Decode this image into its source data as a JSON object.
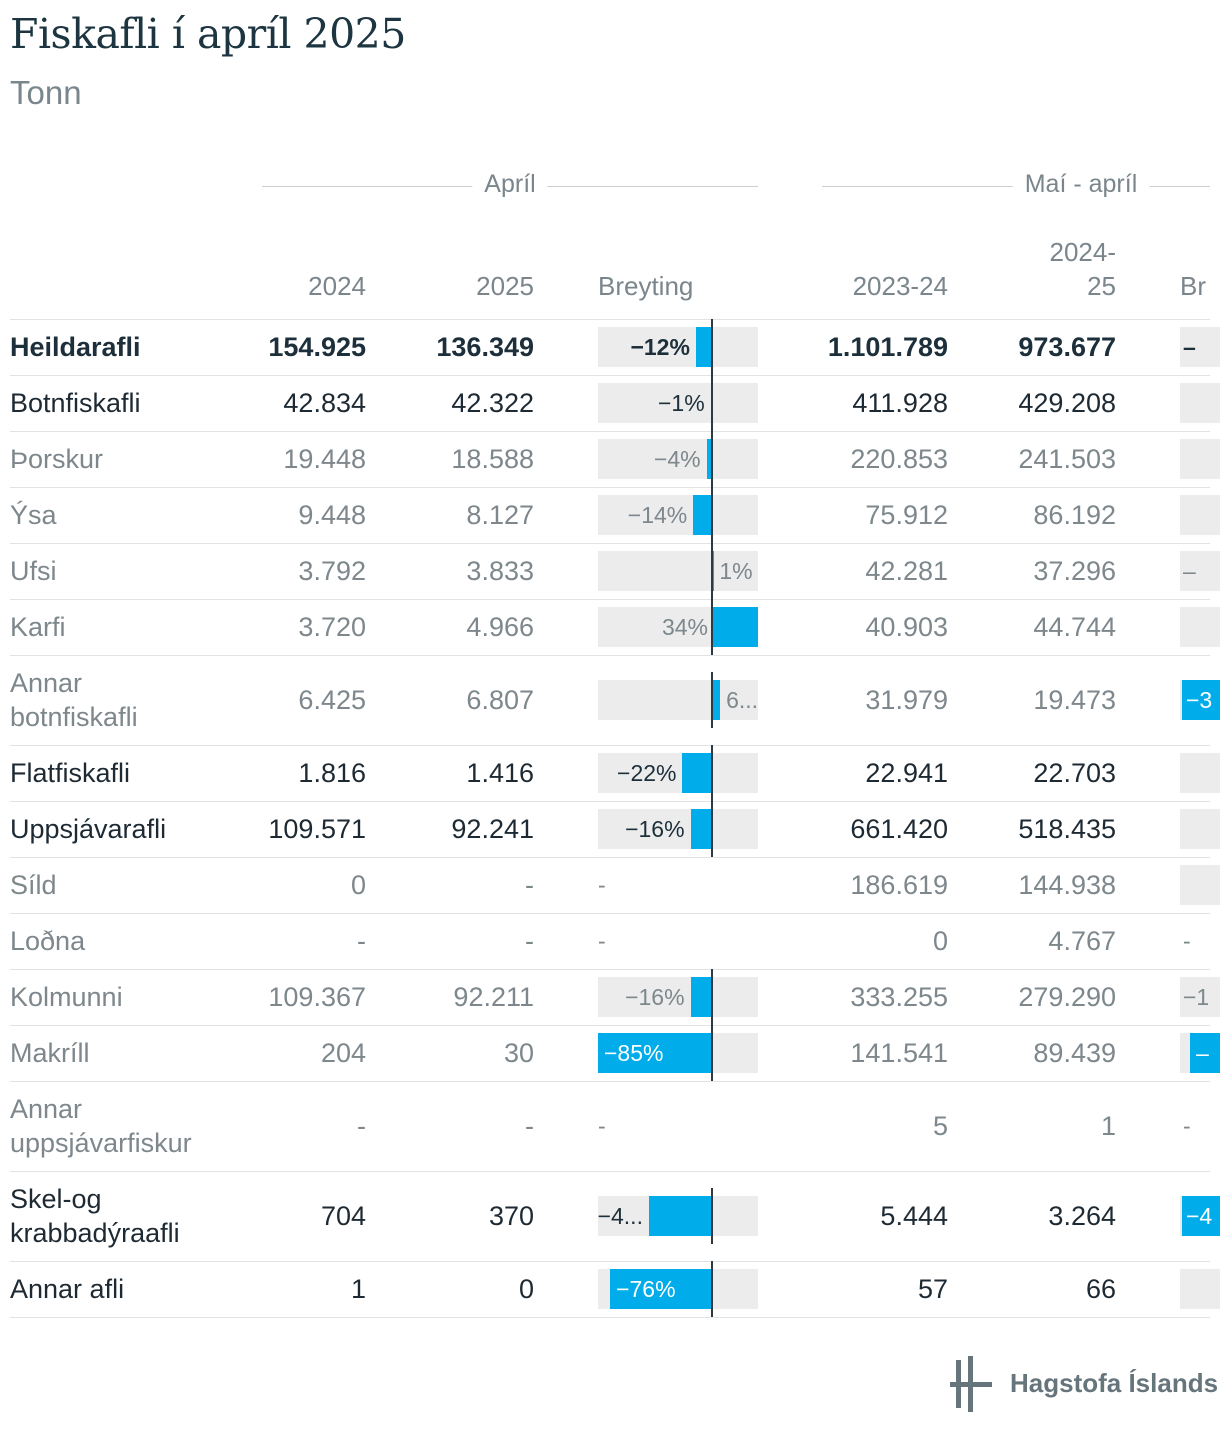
{
  "title": "Fiskafli í apríl 2025",
  "subtitle": "Tonn",
  "groups": {
    "april": "Apríl",
    "mai_april": "Maí - apríl"
  },
  "columns": {
    "y2024": "2024",
    "y2025": "2025",
    "breyting": "Breyting",
    "p2023_24": "2023-24",
    "p2024_25_a": "2024-",
    "p2024_25_b": "25",
    "breyting_cut": "Br"
  },
  "colors": {
    "bar": "#00acea",
    "bar_bg": "#ececec",
    "title": "#1c3540"
  },
  "chart_data": {
    "type": "table",
    "title": "Fiskafli í apríl 2025",
    "unit": "Tonn",
    "rows": [
      {
        "name": "Heildarafli",
        "style": "bold",
        "v2024": "154.925",
        "v2025": "136.349",
        "change": -12,
        "change_label": "−12%",
        "p2023_24": "1.101.789",
        "p2024_25": "973.677",
        "right_label": "–"
      },
      {
        "name": "Botnfiskafli",
        "style": "strong",
        "v2024": "42.834",
        "v2025": "42.322",
        "change": -1,
        "change_label": "−1%",
        "p2023_24": "411.928",
        "p2024_25": "429.208"
      },
      {
        "name": "Þorskur",
        "style": "muted",
        "v2024": "19.448",
        "v2025": "18.588",
        "change": -4,
        "change_label": "−4%",
        "p2023_24": "220.853",
        "p2024_25": "241.503"
      },
      {
        "name": "Ýsa",
        "style": "muted",
        "v2024": "9.448",
        "v2025": "8.127",
        "change": -14,
        "change_label": "−14%",
        "p2023_24": "75.912",
        "p2024_25": "86.192"
      },
      {
        "name": "Ufsi",
        "style": "muted",
        "v2024": "3.792",
        "v2025": "3.833",
        "change": 1,
        "change_label": "1%",
        "p2023_24": "42.281",
        "p2024_25": "37.296",
        "right_label": "–"
      },
      {
        "name": "Karfi",
        "style": "muted",
        "v2024": "3.720",
        "v2025": "4.966",
        "change": 34,
        "change_label": "34%",
        "p2023_24": "40.903",
        "p2024_25": "44.744"
      },
      {
        "name": "Annar botnfiskafli",
        "name_lines": [
          "Annar",
          "botnfiskafli"
        ],
        "style": "muted",
        "v2024": "6.425",
        "v2025": "6.807",
        "change": 6,
        "change_label": "6...",
        "p2023_24": "31.979",
        "p2024_25": "19.473",
        "right_label": "−3",
        "right_bar": true
      },
      {
        "name": "Flatfiskafli",
        "style": "strong",
        "v2024": "1.816",
        "v2025": "1.416",
        "change": -22,
        "change_label": "−22%",
        "p2023_24": "22.941",
        "p2024_25": "22.703"
      },
      {
        "name": "Uppsjávarafli",
        "style": "strong",
        "v2024": "109.571",
        "v2025": "92.241",
        "change": -16,
        "change_label": "−16%",
        "p2023_24": "661.420",
        "p2024_25": "518.435"
      },
      {
        "name": "Síld",
        "style": "muted",
        "v2024": "0",
        "v2025": "-",
        "change": null,
        "change_label": "-",
        "p2023_24": "186.619",
        "p2024_25": "144.938"
      },
      {
        "name": "Loðna",
        "style": "muted",
        "v2024": "-",
        "v2025": "-",
        "change": null,
        "change_label": "-",
        "p2023_24": "0",
        "p2024_25": "4.767",
        "right_label": "-",
        "right_nobg": true
      },
      {
        "name": "Kolmunni",
        "style": "muted",
        "v2024": "109.367",
        "v2025": "92.211",
        "change": -16,
        "change_label": "−16%",
        "p2023_24": "333.255",
        "p2024_25": "279.290",
        "right_label": "−1"
      },
      {
        "name": "Makríll",
        "style": "muted",
        "v2024": "204",
        "v2025": "30",
        "change": -85,
        "change_label": "−85%",
        "p2023_24": "141.541",
        "p2024_25": "89.439",
        "right_label": "–",
        "right_bar": true
      },
      {
        "name": "Annar uppsjávarfiskur",
        "name_lines": [
          "Annar",
          "uppsjávarfiskur"
        ],
        "style": "muted",
        "v2024": "-",
        "v2025": "-",
        "change": null,
        "change_label": "-",
        "p2023_24": "5",
        "p2024_25": "1",
        "right_label": "-",
        "right_nobg": true
      },
      {
        "name": "Skel-og krabbadýraafli",
        "name_lines": [
          "Skel-og",
          "krabbadýraafli"
        ],
        "style": "strong",
        "v2024": "704",
        "v2025": "370",
        "change": -47,
        "change_label": "−4...",
        "p2023_24": "5.444",
        "p2024_25": "3.264",
        "right_label": "−4",
        "right_bar": true
      },
      {
        "name": "Annar afli",
        "style": "strong",
        "v2024": "1",
        "v2025": "0",
        "change": -76,
        "change_label": "−76%",
        "p2023_24": "57",
        "p2024_25": "66"
      }
    ]
  },
  "logo": {
    "text": "Hagstofa Íslands"
  }
}
